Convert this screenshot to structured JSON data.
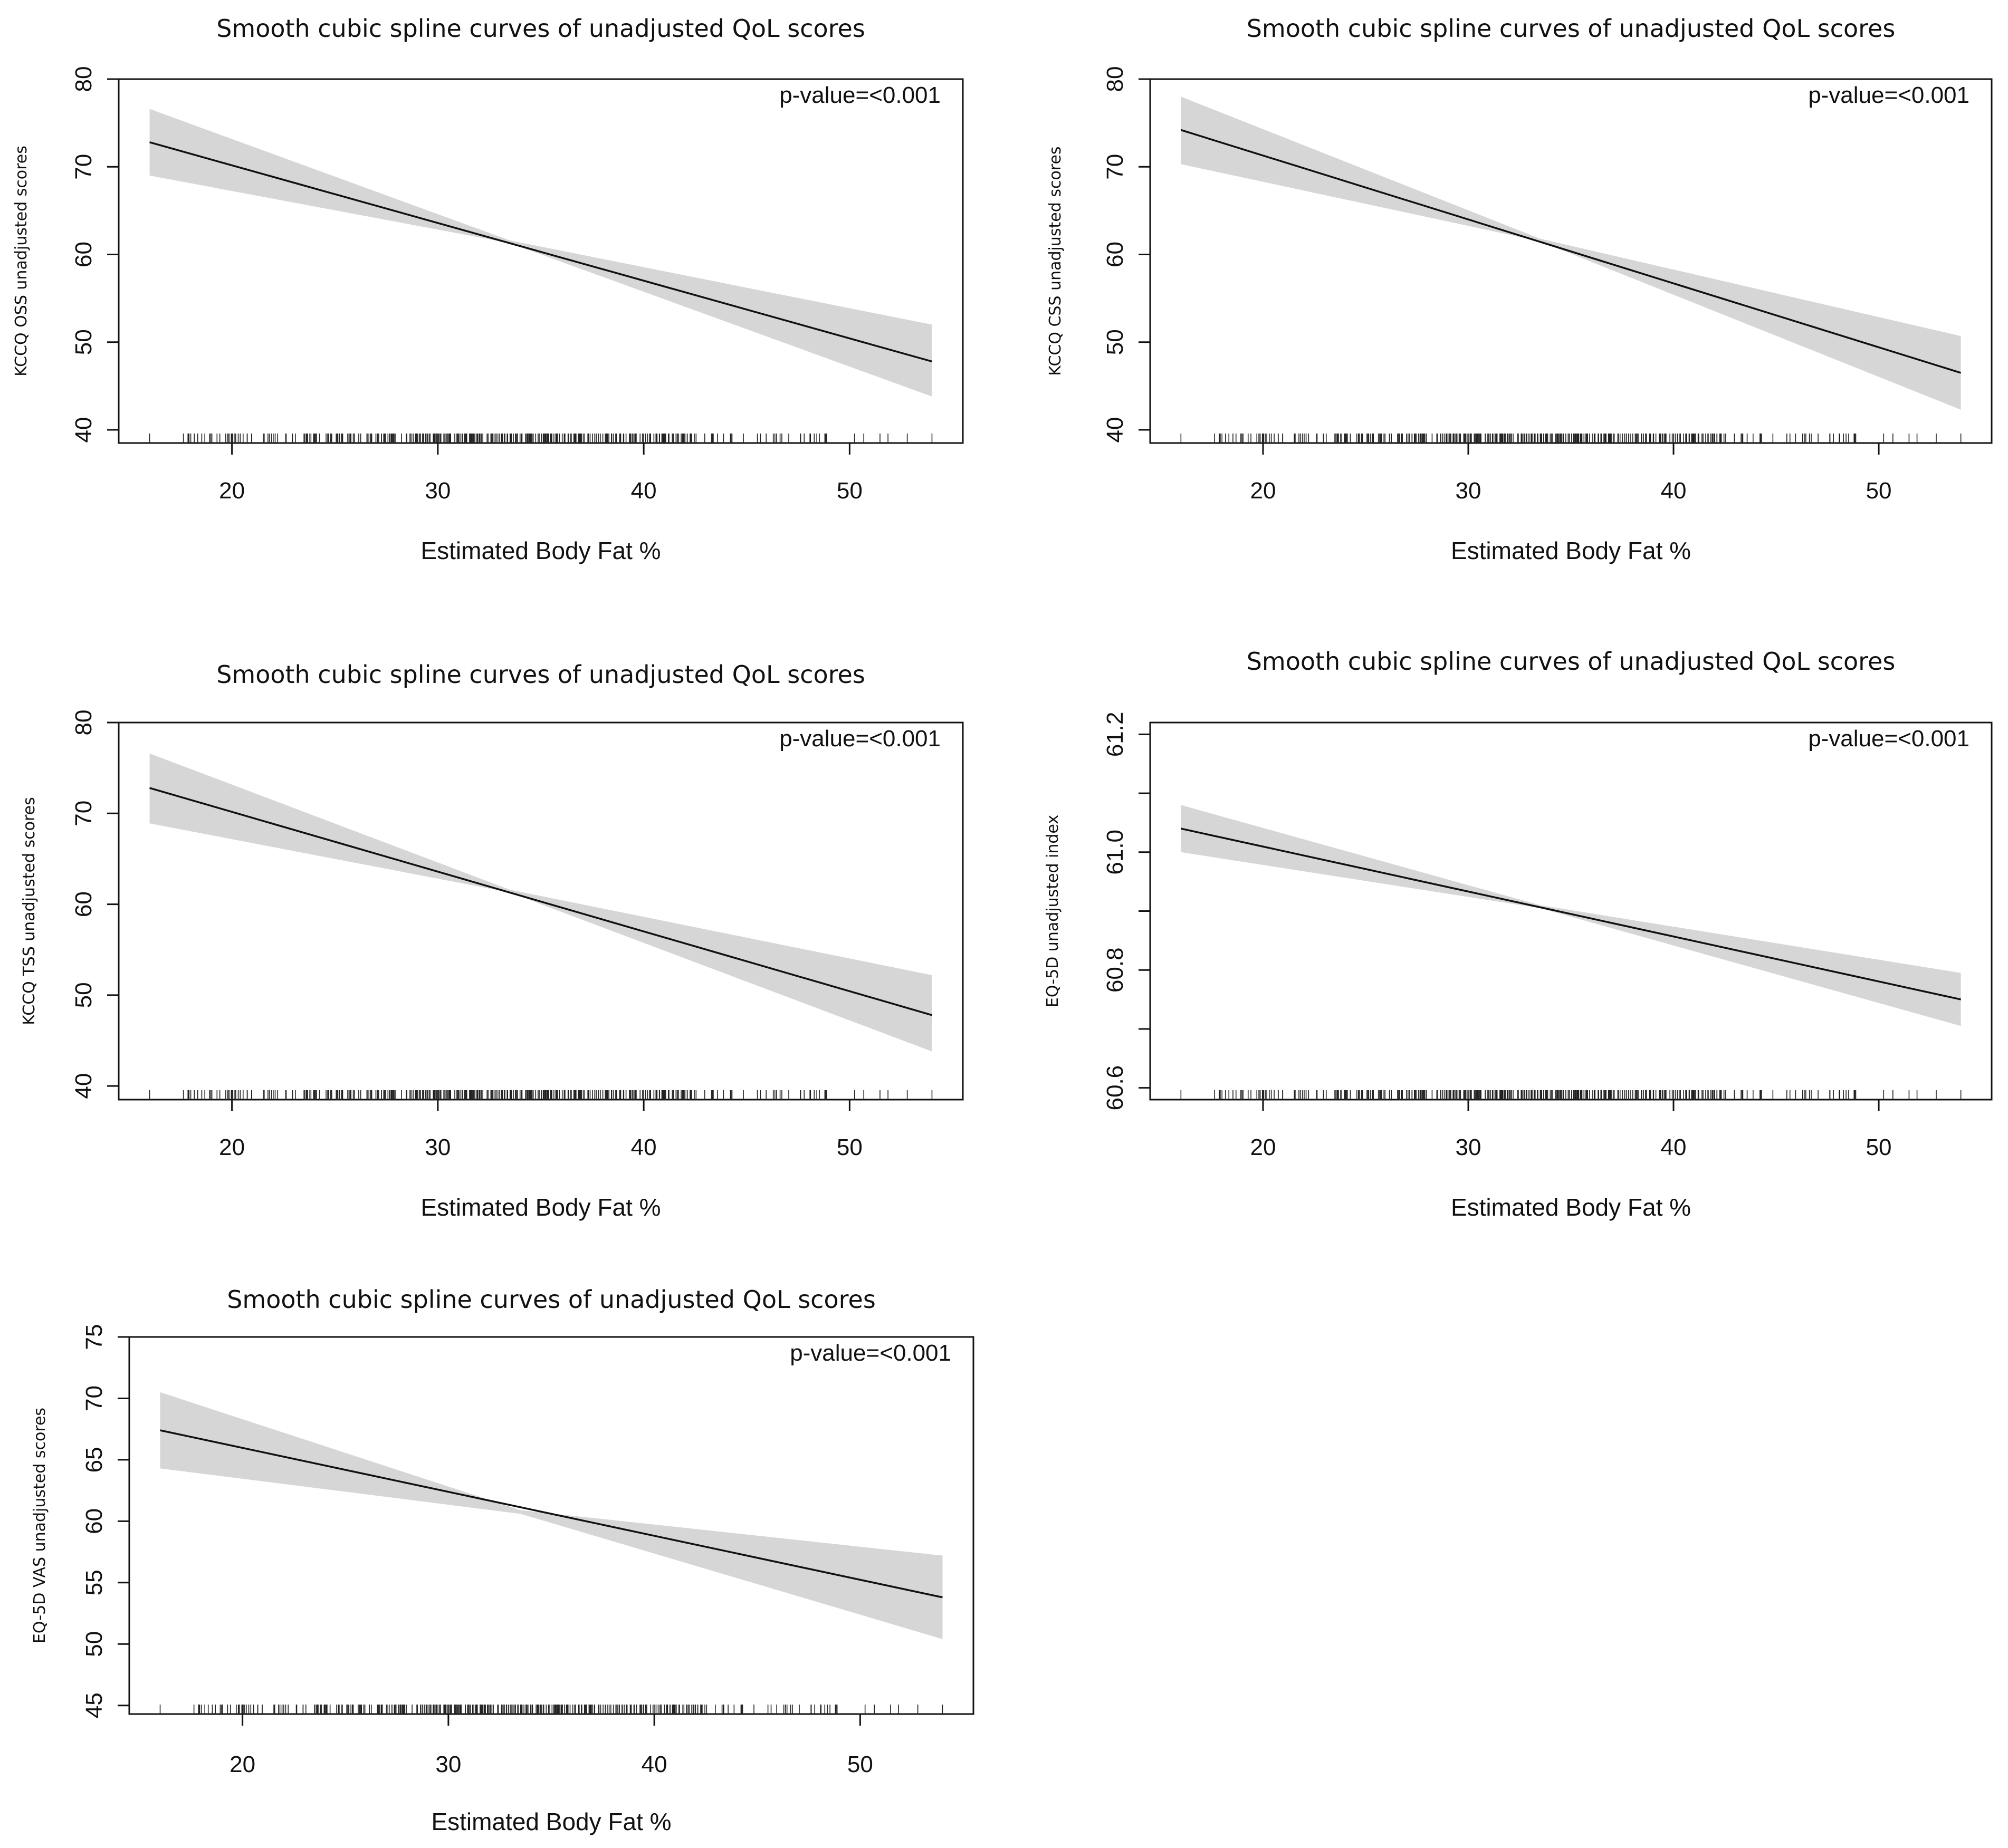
{
  "chart_data": [
    {
      "type": "line",
      "title": "Smooth  cubic spline curves of unadjusted  QoL scores",
      "xlabel": "Estimated Body Fat %",
      "ylabel": "KCCQ OSS unadjusted scores",
      "annotation": "p-value=<0.001",
      "xlim": [
        14.5,
        55.5
      ],
      "ylim": [
        38.5,
        80
      ],
      "x_ticks": [
        20,
        30,
        40,
        50
      ],
      "y_ticks": [
        40,
        50,
        60,
        70,
        80
      ],
      "y_tick_labels": [
        "40",
        "50",
        "60",
        "70",
        "80"
      ],
      "series": [
        {
          "name": "fit",
          "x": [
            16,
            54
          ],
          "y": [
            72.8,
            47.8
          ]
        },
        {
          "name": "lower CI",
          "x": [
            16,
            33.5,
            54
          ],
          "y": [
            69.0,
            61.3,
            43.8
          ]
        },
        {
          "name": "upper CI",
          "x": [
            16,
            33.5,
            54
          ],
          "y": [
            76.6,
            61.6,
            52.0
          ]
        }
      ],
      "rug": {
        "min": 16,
        "max": 54
      }
    },
    {
      "type": "line",
      "title": "Smooth  cubic spline curves of unadjusted  QoL scores",
      "xlabel": "Estimated Body Fat %",
      "ylabel": "KCCQ CSS unadjusted scores",
      "annotation": "p-value=<0.001",
      "xlim": [
        14.5,
        55.5
      ],
      "ylim": [
        38.5,
        80
      ],
      "x_ticks": [
        20,
        30,
        40,
        50
      ],
      "y_ticks": [
        40,
        50,
        60,
        70,
        80
      ],
      "y_tick_labels": [
        "40",
        "50",
        "60",
        "70",
        "80"
      ],
      "series": [
        {
          "name": "fit",
          "x": [
            16,
            54
          ],
          "y": [
            74.2,
            46.5
          ]
        },
        {
          "name": "lower CI",
          "x": [
            16,
            33.5,
            54
          ],
          "y": [
            70.3,
            61.5,
            42.3
          ]
        },
        {
          "name": "upper CI",
          "x": [
            16,
            33.5,
            54
          ],
          "y": [
            78.0,
            61.8,
            50.7
          ]
        }
      ],
      "rug": {
        "min": 16,
        "max": 54
      }
    },
    {
      "type": "line",
      "title": "Smooth  cubic spline curves of unadjusted  QoL scores",
      "xlabel": "Estimated Body Fat %",
      "ylabel": "KCCQ TSS unadjusted scores",
      "annotation": "p-value=<0.001",
      "xlim": [
        14.5,
        55.5
      ],
      "ylim": [
        38.5,
        80
      ],
      "x_ticks": [
        20,
        30,
        40,
        50
      ],
      "y_ticks": [
        40,
        50,
        60,
        70,
        80
      ],
      "y_tick_labels": [
        "40",
        "50",
        "60",
        "70",
        "80"
      ],
      "series": [
        {
          "name": "fit",
          "x": [
            16,
            54
          ],
          "y": [
            72.8,
            47.8
          ]
        },
        {
          "name": "lower CI",
          "x": [
            16,
            33.5,
            54
          ],
          "y": [
            68.9,
            61.3,
            43.8
          ]
        },
        {
          "name": "upper CI",
          "x": [
            16,
            33.5,
            54
          ],
          "y": [
            76.6,
            61.6,
            52.2
          ]
        }
      ],
      "rug": {
        "min": 16,
        "max": 54
      }
    },
    {
      "type": "line",
      "title": "Smooth  cubic spline curves of unadjusted  QoL scores",
      "xlabel": "Estimated Body Fat %",
      "ylabel": "EQ-5D unadjusted index",
      "annotation": "p-value=<0.001",
      "xlim": [
        14.5,
        55.5
      ],
      "ylim": [
        60.58,
        61.22
      ],
      "x_ticks": [
        20,
        30,
        40,
        50
      ],
      "y_ticks": [
        60.6,
        60.7,
        60.8,
        60.9,
        61.0,
        61.1,
        61.2
      ],
      "y_tick_labels": [
        "60.6",
        "",
        "60.8",
        "",
        "61.0",
        "",
        "61.2"
      ],
      "series": [
        {
          "name": "fit",
          "x": [
            16,
            54
          ],
          "y": [
            61.04,
            60.75
          ]
        },
        {
          "name": "lower CI",
          "x": [
            16,
            33.5,
            54
          ],
          "y": [
            61.0,
            60.905,
            60.705
          ]
        },
        {
          "name": "upper CI",
          "x": [
            16,
            33.5,
            54
          ],
          "y": [
            61.08,
            60.91,
            60.795
          ]
        }
      ],
      "rug": {
        "min": 16,
        "max": 54
      }
    },
    {
      "type": "line",
      "title": "Smooth  cubic spline curves of unadjusted  QoL scores",
      "xlabel": "Estimated Body Fat %",
      "ylabel": "EQ-5D VAS unadjusted scores",
      "annotation": "p-value=<0.001",
      "xlim": [
        14.5,
        55.5
      ],
      "ylim": [
        44.3,
        75
      ],
      "x_ticks": [
        20,
        30,
        40,
        50
      ],
      "y_ticks": [
        45,
        50,
        55,
        60,
        65,
        70,
        75
      ],
      "y_tick_labels": [
        "45",
        "50",
        "55",
        "60",
        "65",
        "70",
        "75"
      ],
      "series": [
        {
          "name": "fit",
          "x": [
            16,
            54
          ],
          "y": [
            67.4,
            53.8
          ]
        },
        {
          "name": "lower CI",
          "x": [
            16,
            33.5,
            54
          ],
          "y": [
            64.3,
            60.6,
            50.4
          ]
        },
        {
          "name": "upper CI",
          "x": [
            16,
            33.5,
            54
          ],
          "y": [
            70.5,
            60.9,
            57.2
          ]
        }
      ],
      "rug": {
        "min": 16,
        "max": 54
      }
    }
  ]
}
